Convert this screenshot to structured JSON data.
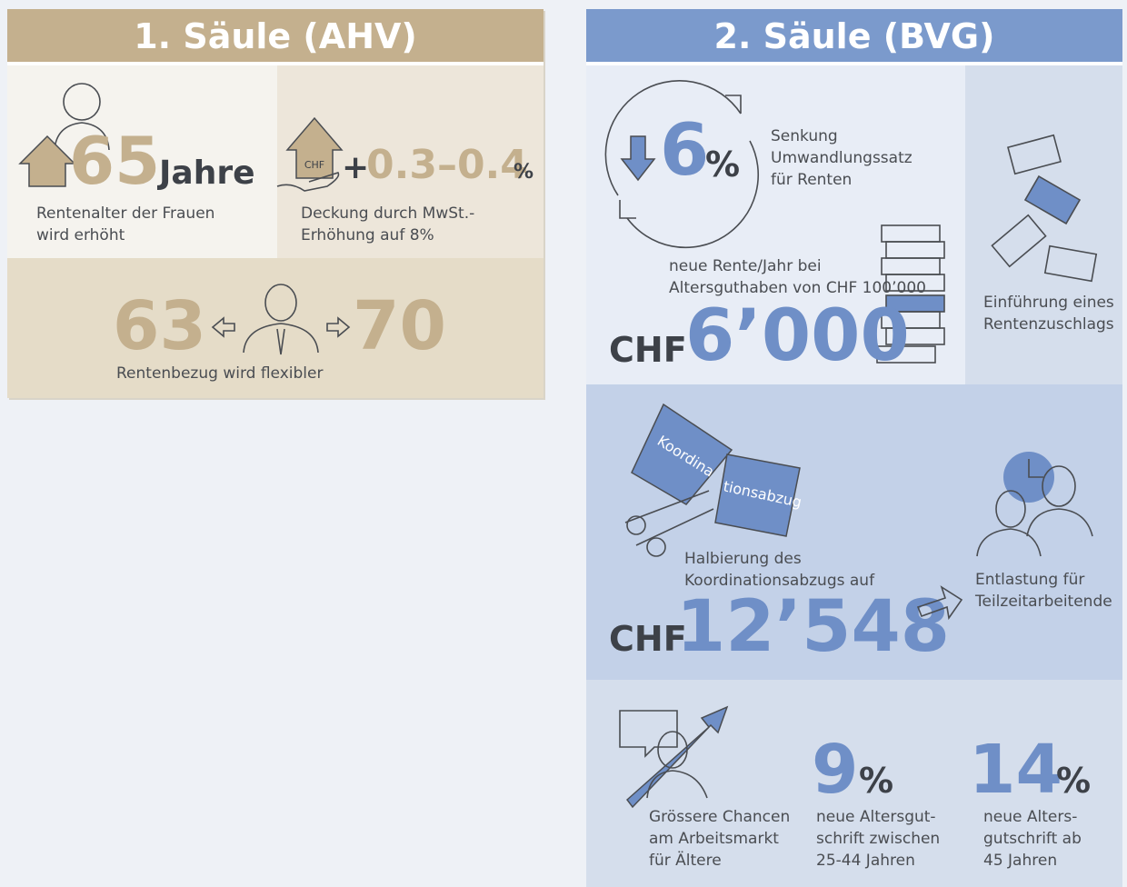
{
  "ahv": {
    "title": "1. Säule (AHV)",
    "age": {
      "number": "65",
      "unit": "Jahre",
      "caption": [
        "Rentenalter der Frauen",
        "wird erhöht"
      ]
    },
    "vat": {
      "icon_label": "CHF",
      "sign": "+",
      "number": "0.3–0.4",
      "unit": "%",
      "caption": [
        "Deckung durch MwSt.-",
        "Erhöhung auf 8%"
      ]
    },
    "flex": {
      "min": "63",
      "max": "70",
      "caption": "Rentenbezug wird flexibler"
    }
  },
  "bvg": {
    "title": "2. Säule (BVG)",
    "rate": {
      "number": "6",
      "unit": "%",
      "caption": [
        "Senkung",
        "Umwandlungssatz",
        "für Renten"
      ]
    },
    "pension": {
      "caption": [
        "neue Rente/Jahr bei",
        "Altersguthaben von CHF 100’000"
      ],
      "currency": "CHF",
      "number": "6’000"
    },
    "supplement": {
      "caption": [
        "Einführung eines",
        "Rentenzuschlags"
      ]
    },
    "deduction": {
      "banner": [
        "Koordina",
        "tionsabzug"
      ],
      "caption": [
        "Halbierung des",
        "Koordinationsabzugs auf"
      ],
      "currency": "CHF",
      "number": "12’548"
    },
    "parttime": {
      "caption": [
        "Entlastung für",
        "Teilzeitarbeitende"
      ]
    },
    "market": {
      "caption": [
        "Grössere Chancen",
        "am Arbeitsmarkt",
        "für Ältere"
      ]
    },
    "credit_young": {
      "number": "9",
      "unit": "%",
      "caption": [
        "neue Altersgut-",
        "schrift zwischen",
        "25-44 Jahren"
      ]
    },
    "credit_old": {
      "number": "14",
      "unit": "%",
      "caption": [
        "neue Alters-",
        "gutschrift ab",
        "45 Jahren"
      ]
    }
  }
}
